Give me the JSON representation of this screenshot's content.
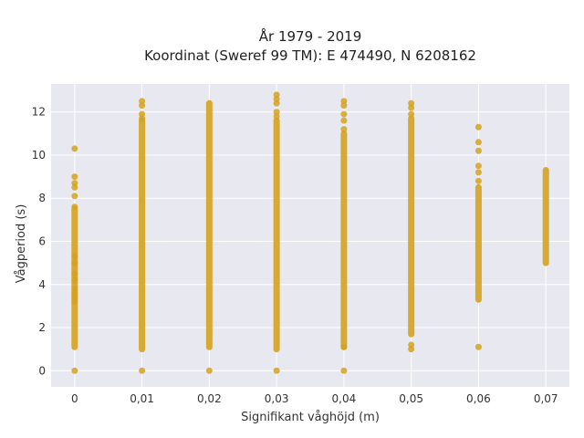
{
  "chart_data": {
    "type": "scatter",
    "title_line1": "År 1979 - 2019",
    "title_line2": "Koordinat (Sweref 99 TM): E 474490, N 6208162",
    "xlabel": "Signifikant våghöjd (m)",
    "ylabel": "Vågperiod (s)",
    "xlim": [
      -0.0035,
      0.0735
    ],
    "ylim": [
      -0.75,
      13.3
    ],
    "x_ticks": [
      0,
      0.01,
      0.02,
      0.03,
      0.04,
      0.05,
      0.06,
      0.07
    ],
    "x_tick_labels": [
      "0",
      "0,01",
      "0,02",
      "0,03",
      "0,04",
      "0,05",
      "0,06",
      "0,07"
    ],
    "y_ticks": [
      0,
      2,
      4,
      6,
      8,
      10,
      12
    ],
    "y_tick_labels": [
      "0",
      "2",
      "4",
      "6",
      "8",
      "10",
      "12"
    ],
    "grid": true,
    "marker_color": "#D4A21E",
    "plot_bg": "#E8E8F0",
    "columns": [
      {
        "x": 0,
        "y_min": 1.1,
        "y_max": 7.5,
        "points": [
          0,
          10.3,
          9.0,
          8.7,
          8.5,
          8.1,
          7.6,
          5.3,
          5.0,
          4.5,
          4.2,
          3.8,
          3.6,
          3.4,
          3.2
        ]
      },
      {
        "x": 0.01,
        "y_min": 1.0,
        "y_max": 11.6,
        "points": [
          0,
          12.5,
          12.3,
          11.9,
          11.7
        ]
      },
      {
        "x": 0.02,
        "y_min": 1.1,
        "y_max": 12.4,
        "points": [
          0
        ]
      },
      {
        "x": 0.03,
        "y_min": 1.0,
        "y_max": 11.6,
        "points": [
          0,
          12.8,
          12.6,
          12.4,
          12.0,
          11.8
        ]
      },
      {
        "x": 0.04,
        "y_min": 1.1,
        "y_max": 11.0,
        "points": [
          0,
          1.1,
          12.5,
          12.3,
          11.9,
          11.6,
          11.2
        ]
      },
      {
        "x": 0.05,
        "y_min": 1.7,
        "y_max": 11.7,
        "points": [
          1.2,
          1.0,
          12.4,
          12.2,
          11.9
        ]
      },
      {
        "x": 0.06,
        "y_min": 3.3,
        "y_max": 8.5,
        "points": [
          1.1,
          11.3,
          10.6,
          10.2,
          9.5,
          9.2,
          8.8
        ]
      },
      {
        "x": 0.07,
        "y_min": 5.0,
        "y_max": 9.3,
        "points": []
      }
    ]
  }
}
